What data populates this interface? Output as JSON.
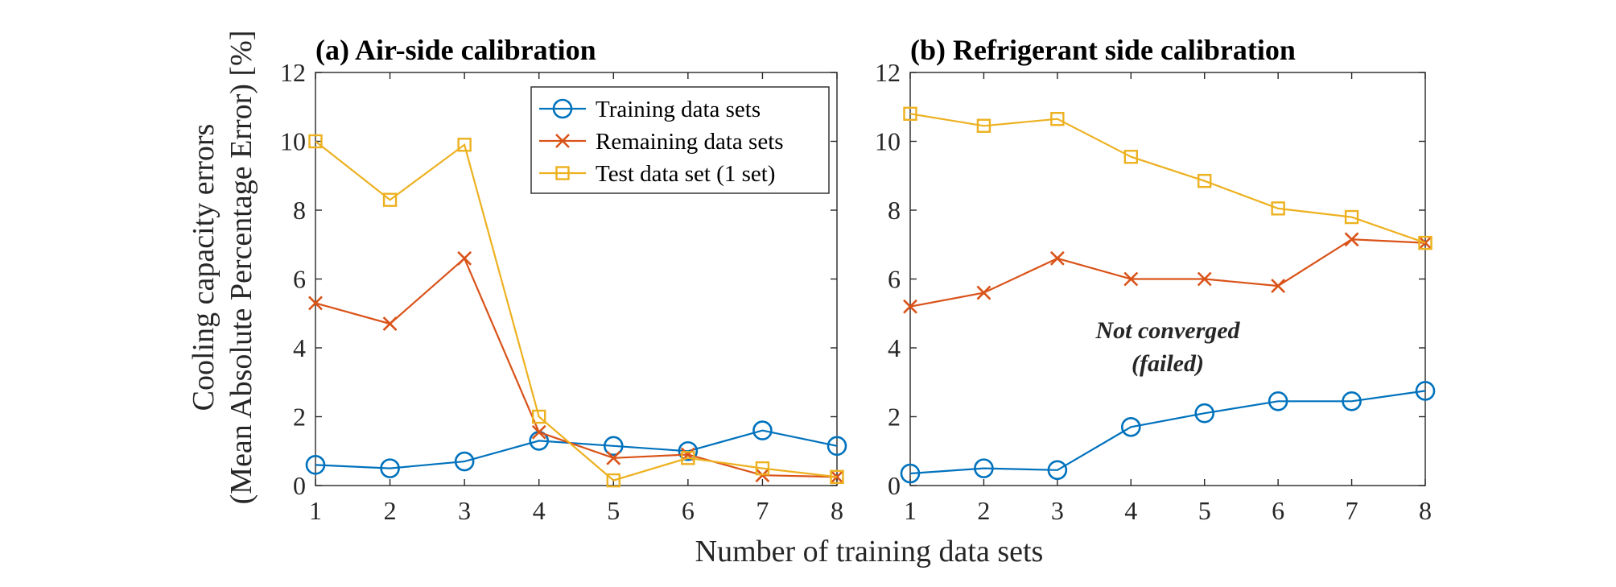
{
  "figure": {
    "ylabel_line1": "Cooling capacity errors",
    "ylabel_line2": "(Mean Absolute Percentage Error) [%]",
    "xlabel": "Number of training data sets"
  },
  "colors": {
    "training": "#0072BD",
    "remaining": "#D95319",
    "test": "#EDB120",
    "annotation": "#B2161C",
    "axis": "#262626"
  },
  "chart_data": [
    {
      "type": "line",
      "title": "(a) Air-side calibration",
      "xlabel": "Number of training data sets",
      "ylabel": "Cooling capacity errors (Mean Absolute Percentage Error) [%]",
      "x": [
        1,
        2,
        3,
        4,
        5,
        6,
        7,
        8
      ],
      "xlim": [
        1,
        8
      ],
      "ylim": [
        0,
        12
      ],
      "xticks": [
        "1",
        "2",
        "3",
        "4",
        "5",
        "6",
        "7",
        "8"
      ],
      "yticks": [
        "0",
        "2",
        "4",
        "6",
        "8",
        "10",
        "12"
      ],
      "legend": {
        "position": "top-right"
      },
      "series": [
        {
          "name": "Training data sets",
          "marker": "circle",
          "color": "#0072BD",
          "values": [
            0.6,
            0.5,
            0.7,
            1.3,
            1.15,
            1.0,
            1.6,
            1.15
          ]
        },
        {
          "name": "Remaining data sets",
          "marker": "x",
          "color": "#D95319",
          "values": [
            5.3,
            4.7,
            6.6,
            1.55,
            0.8,
            0.9,
            0.3,
            0.25
          ]
        },
        {
          "name": "Test data set (1 set)",
          "marker": "square",
          "color": "#EDB120",
          "values": [
            10.0,
            8.3,
            9.9,
            2.0,
            0.15,
            0.8,
            0.5,
            0.25
          ]
        }
      ]
    },
    {
      "type": "line",
      "title": "(b) Refrigerant side calibration",
      "xlabel": "Number of training data sets",
      "ylabel": "Cooling capacity errors (Mean Absolute Percentage Error) [%]",
      "x": [
        1,
        2,
        3,
        4,
        5,
        6,
        7,
        8
      ],
      "xlim": [
        1,
        8
      ],
      "ylim": [
        0,
        12
      ],
      "xticks": [
        "1",
        "2",
        "3",
        "4",
        "5",
        "6",
        "7",
        "8"
      ],
      "yticks": [
        "0",
        "2",
        "4",
        "6",
        "8",
        "10",
        "12"
      ],
      "annotation": {
        "line1": "Not converged",
        "line2": "(failed)"
      },
      "series": [
        {
          "name": "Training data sets",
          "marker": "circle",
          "color": "#0072BD",
          "values": [
            0.35,
            0.5,
            0.45,
            1.7,
            2.1,
            2.45,
            2.45,
            2.75
          ]
        },
        {
          "name": "Remaining data sets",
          "marker": "x",
          "color": "#D95319",
          "values": [
            5.2,
            5.6,
            6.6,
            6.0,
            6.0,
            5.8,
            7.15,
            7.05
          ]
        },
        {
          "name": "Test data set (1 set)",
          "marker": "square",
          "color": "#EDB120",
          "values": [
            10.8,
            10.45,
            10.65,
            9.55,
            8.85,
            8.05,
            7.8,
            7.05
          ]
        }
      ]
    }
  ]
}
